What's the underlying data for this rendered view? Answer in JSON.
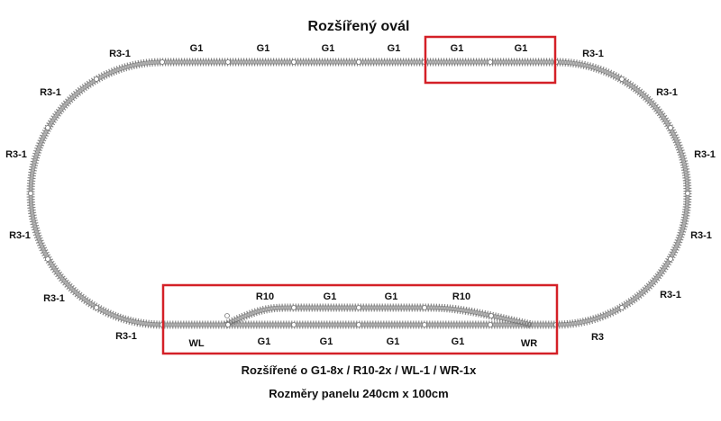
{
  "title": "Rozšířený ovál",
  "caption_extension": "Rozšířené o G1-8x / R10-2x / WL-1 / WR-1x",
  "caption_dimensions": "Rozměry panelu 240cm x 100cm",
  "colors": {
    "track": "#8a8a8a",
    "rail": "#5a5a5a",
    "highlight": "#d42027"
  },
  "labels": [
    "R3-1",
    "G1",
    "G1",
    "G1",
    "G1",
    "G1",
    "G1",
    "R3-1",
    "R3-1",
    "R3-1",
    "R3-1",
    "R3-1",
    "R3-1",
    "R3-1",
    "R3-1",
    "R3-1",
    "R3-1",
    "R3",
    "R10",
    "G1",
    "G1",
    "R10",
    "WL",
    "G1",
    "G1",
    "G1",
    "G1",
    "WR"
  ]
}
